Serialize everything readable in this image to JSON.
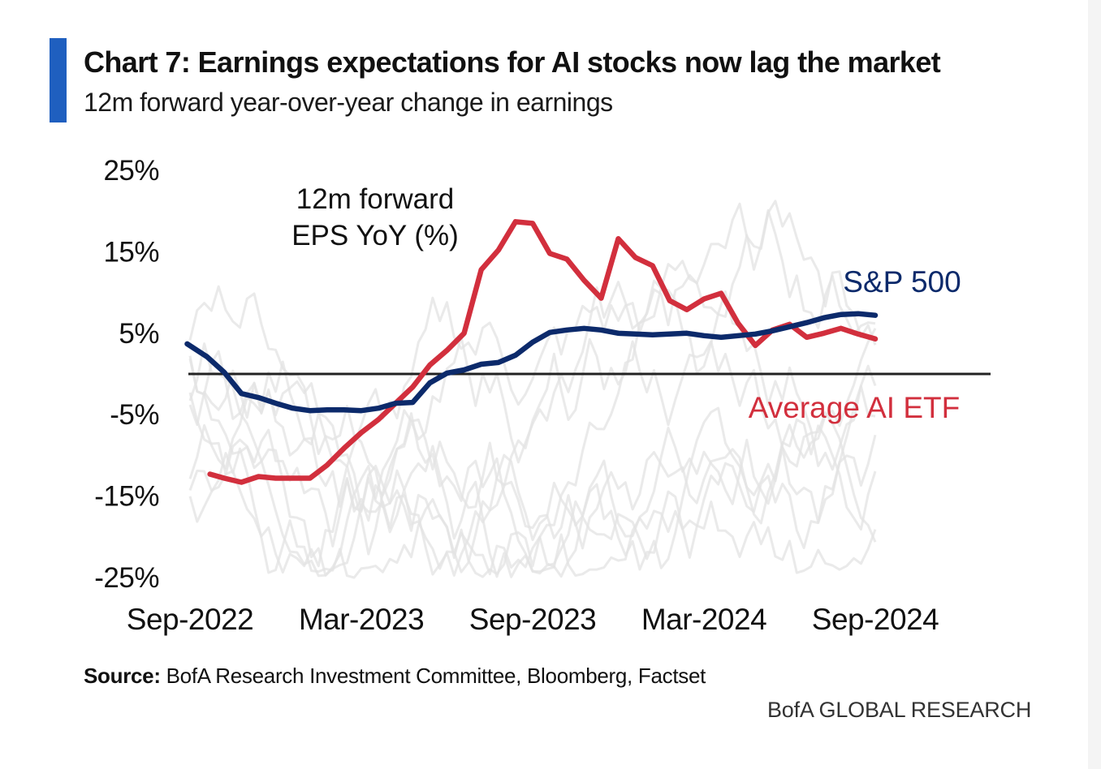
{
  "colors": {
    "accent": "#1f5fbf",
    "sp500": "#0c2a6b",
    "ai_etf": "#d22f3d",
    "background_lines": "#e3e3e3",
    "zero_line": "#222222"
  },
  "header": {
    "title": "Chart 7: Earnings expectations for AI stocks now lag the market",
    "subtitle": "12m forward year-over-year change in earnings"
  },
  "footer": {
    "source_label": "Source:",
    "source_text": " BofA Research Investment Committee, Bloomberg, Factset",
    "brand": "BofA GLOBAL RESEARCH"
  },
  "chart_data": {
    "type": "line",
    "title": "Chart 7: Earnings expectations for AI stocks now lag the market",
    "subtitle": "12m forward year-over-year change in earnings",
    "ylabel": "12m forward EPS YoY (%)",
    "ylabel_lines": [
      "12m forward",
      "EPS YoY (%)"
    ],
    "xlabel": "",
    "ylim": [
      -25,
      25
    ],
    "y_ticks": [
      25,
      15,
      5,
      -5,
      -15,
      -25
    ],
    "y_tick_labels": [
      "25%",
      "15%",
      "5%",
      "-5%",
      "-15%",
      "-25%"
    ],
    "x_range": [
      0,
      24
    ],
    "x_ticks": [
      0,
      6,
      12,
      18,
      24
    ],
    "x_tick_labels": [
      "Sep-2022",
      "Mar-2023",
      "Sep-2023",
      "Mar-2024",
      "Sep-2024"
    ],
    "x_unit": "months since Sep-2022",
    "zero_line": true,
    "grid": false,
    "legend": "inline labels at right",
    "series": [
      {
        "name": "S&P 500",
        "color": "#0c2a6b",
        "x": [
          -0.1,
          0.6,
          1.2,
          1.8,
          2.4,
          3.0,
          3.6,
          4.2,
          4.8,
          5.4,
          6.0,
          6.6,
          7.2,
          7.8,
          8.4,
          9.0,
          9.6,
          10.2,
          10.8,
          11.4,
          12.0,
          12.6,
          13.2,
          13.8,
          14.4,
          15.0,
          15.6,
          16.2,
          16.8,
          17.4,
          18.0,
          18.6,
          19.2,
          19.8,
          20.4,
          21.0,
          21.6,
          22.2,
          22.8,
          23.4,
          24.0
        ],
        "y": [
          3.7,
          2.1,
          0.2,
          -2.4,
          -2.9,
          -3.6,
          -4.2,
          -4.5,
          -4.4,
          -4.4,
          -4.5,
          -4.2,
          -3.6,
          -3.5,
          -1.1,
          0.1,
          0.5,
          1.2,
          1.4,
          2.3,
          3.9,
          5.1,
          5.4,
          5.6,
          5.4,
          5.0,
          4.9,
          4.8,
          4.9,
          5.0,
          4.7,
          4.5,
          4.7,
          4.9,
          5.3,
          5.8,
          6.3,
          6.9,
          7.3,
          7.4,
          7.2
        ]
      },
      {
        "name": "Average AI ETF",
        "color": "#d22f3d",
        "x": [
          0.7,
          1.2,
          1.8,
          2.4,
          3.0,
          3.6,
          4.2,
          4.8,
          5.4,
          6.0,
          6.6,
          7.2,
          7.8,
          8.4,
          9.0,
          9.6,
          10.2,
          10.8,
          11.4,
          12.0,
          12.6,
          13.2,
          13.8,
          14.4,
          15.0,
          15.6,
          16.2,
          16.8,
          17.4,
          18.0,
          18.6,
          19.2,
          19.8,
          20.4,
          21.0,
          21.6,
          22.2,
          22.8,
          23.4,
          24.0
        ],
        "y": [
          -12.3,
          -12.8,
          -13.3,
          -12.6,
          -12.8,
          -12.8,
          -12.8,
          -11.2,
          -9.1,
          -7.2,
          -5.6,
          -3.6,
          -1.6,
          1.1,
          2.9,
          5.0,
          12.8,
          15.2,
          18.7,
          18.5,
          14.8,
          14.1,
          11.5,
          9.3,
          16.6,
          14.3,
          13.3,
          9.0,
          7.9,
          9.2,
          9.9,
          6.2,
          3.5,
          5.4,
          6.1,
          4.5,
          5.0,
          5.6,
          4.9,
          4.3
        ]
      }
    ],
    "annotations": [
      {
        "text": "S&P 500",
        "series": "S&P 500"
      },
      {
        "text": "Average AI ETF",
        "series": "Average AI ETF"
      }
    ],
    "background_lines_note": "light gray individual series, unlabeled"
  }
}
